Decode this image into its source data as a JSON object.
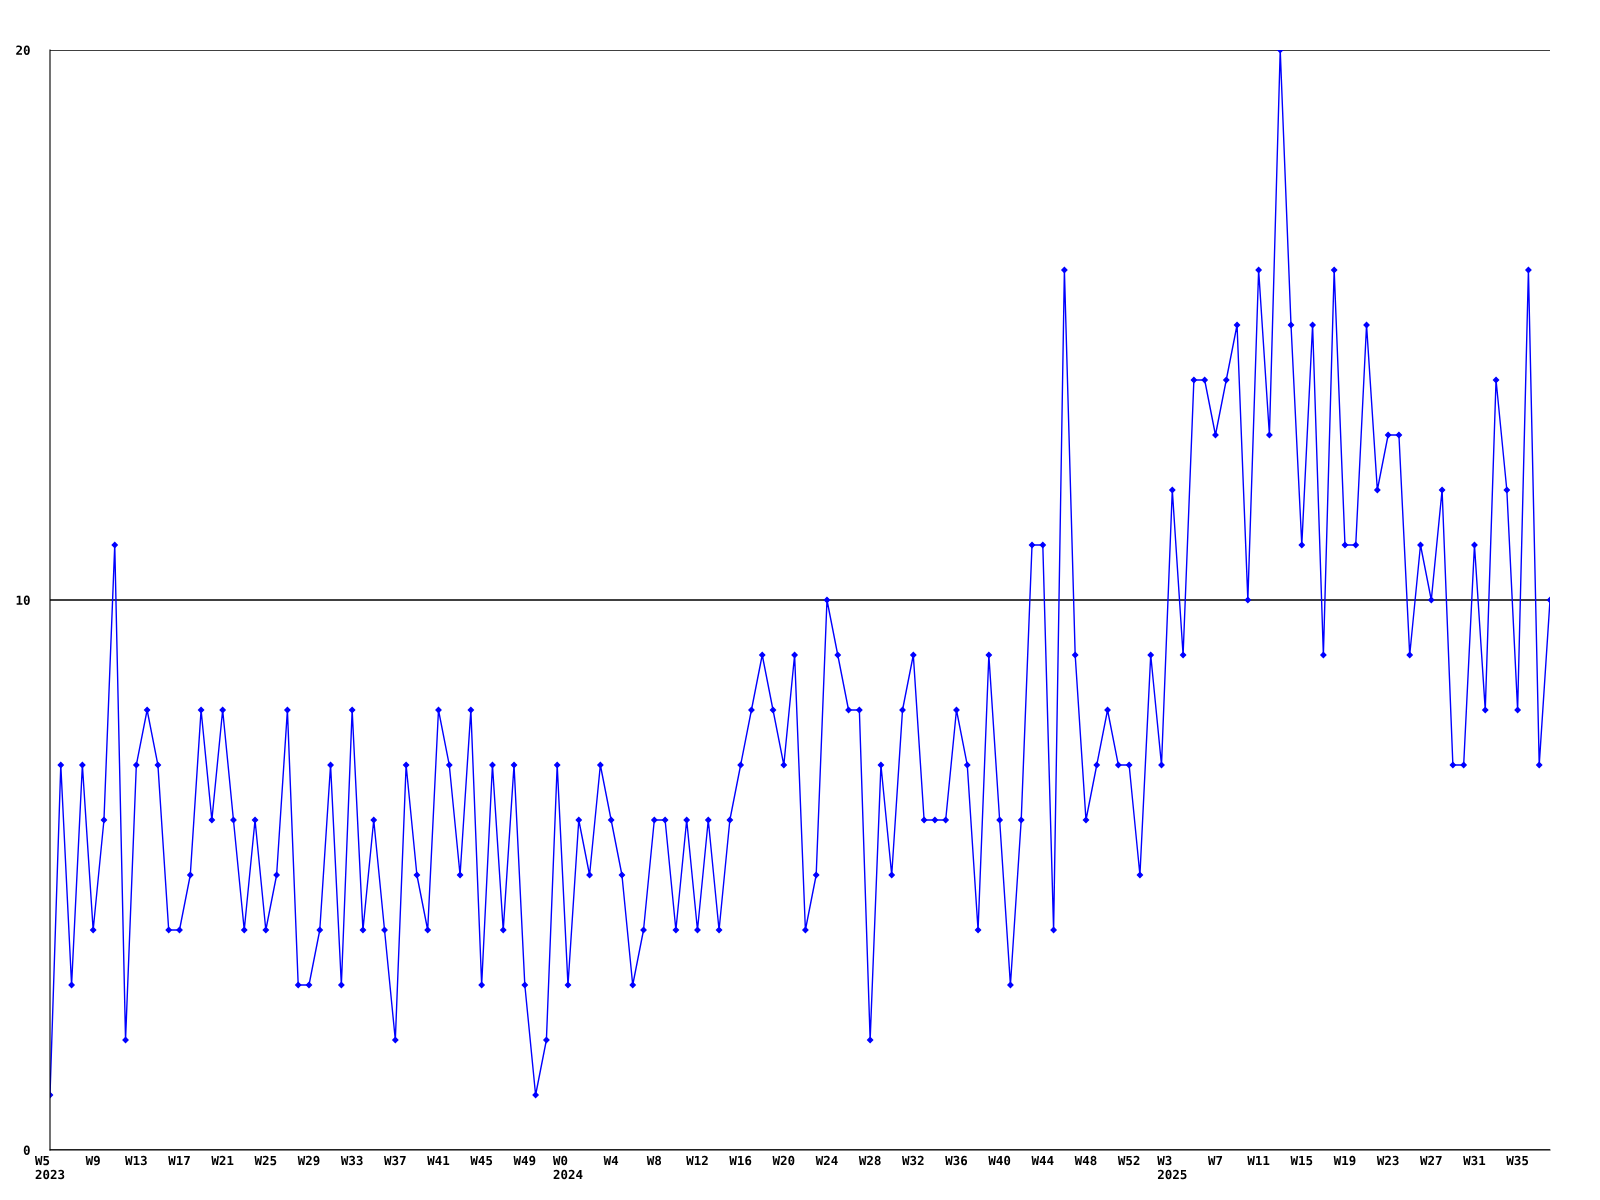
{
  "chart_data": {
    "type": "line",
    "categories": [
      "W5\n2023",
      null,
      null,
      null,
      "W9",
      null,
      null,
      null,
      "W13",
      null,
      null,
      null,
      "W17",
      null,
      null,
      null,
      "W21",
      null,
      null,
      null,
      "W25",
      null,
      null,
      null,
      "W29",
      null,
      null,
      null,
      "W33",
      null,
      null,
      null,
      "W37",
      null,
      null,
      null,
      "W41",
      null,
      null,
      null,
      "W45",
      null,
      null,
      null,
      "W49",
      null,
      null,
      null,
      "W0\n2024",
      null,
      null,
      null,
      "W4",
      null,
      null,
      null,
      "W8",
      null,
      null,
      null,
      "W12",
      null,
      null,
      null,
      "W16",
      null,
      null,
      null,
      "W20",
      null,
      null,
      null,
      "W24",
      null,
      null,
      null,
      "W28",
      null,
      null,
      null,
      "W32",
      null,
      null,
      null,
      "W36",
      null,
      null,
      null,
      "W40",
      null,
      null,
      null,
      "W44",
      null,
      null,
      null,
      "W48",
      null,
      null,
      null,
      "W52",
      null,
      null,
      null,
      "W3\n2025",
      null,
      null,
      null,
      "W7",
      null,
      null,
      null,
      "W11",
      null,
      null,
      null,
      "W15",
      null,
      null,
      null,
      "W19",
      null,
      null,
      null,
      "W23",
      null,
      null,
      null,
      "W27",
      null,
      null,
      null,
      "W31",
      null,
      null,
      null,
      "W35",
      null,
      null,
      null
    ],
    "series": [
      {
        "color": "#0000ff",
        "values": [
          1,
          7,
          3,
          7,
          4,
          6,
          11,
          2,
          7,
          8,
          7,
          4,
          4,
          5,
          8,
          6,
          8,
          6,
          4,
          6,
          4,
          5,
          8,
          3,
          3,
          4,
          7,
          3,
          8,
          4,
          6,
          4,
          2,
          7,
          5,
          4,
          8,
          7,
          5,
          8,
          3,
          7,
          4,
          7,
          3,
          1,
          2,
          7,
          3,
          6,
          5,
          7,
          6,
          5,
          3,
          4,
          6,
          6,
          4,
          6,
          4,
          6,
          4,
          6,
          7,
          8,
          9,
          8,
          7,
          9,
          4,
          5,
          10,
          9,
          8,
          8,
          2,
          7,
          5,
          8,
          9,
          6,
          6,
          6,
          8,
          7,
          4,
          9,
          6,
          3,
          6,
          11,
          11,
          4,
          16,
          9,
          6,
          7,
          8,
          7,
          7,
          5,
          9,
          7,
          12,
          9,
          14,
          14,
          13,
          14,
          15,
          10,
          16,
          13,
          20,
          15,
          11,
          15,
          9,
          16,
          11,
          11,
          15,
          12,
          13,
          13,
          9,
          11,
          10,
          12,
          7,
          7,
          11,
          8,
          14,
          12,
          8,
          16,
          7,
          10
        ]
      }
    ],
    "ylim": [
      0,
      20
    ],
    "yticks": [
      0,
      10,
      20
    ],
    "grid": "y",
    "marker": "diamond",
    "line_style": "solid",
    "legend": false
  }
}
